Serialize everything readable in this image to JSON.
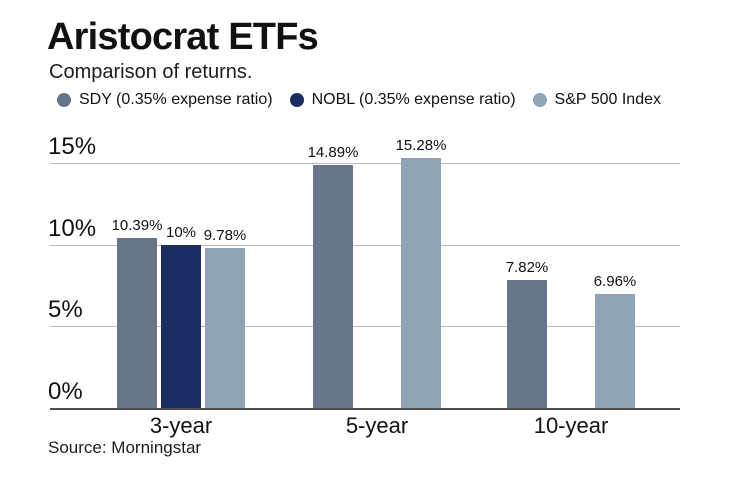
{
  "header": {
    "title": "Aristocrat ETFs",
    "subtitle": "Comparison of returns."
  },
  "source": "Source: Morningstar",
  "chart_data": {
    "type": "bar",
    "title": "Aristocrat ETFs",
    "subtitle": "Comparison of returns.",
    "categories": [
      "3-year",
      "5-year",
      "10-year"
    ],
    "series": [
      {
        "name": "SDY (0.35% expense ratio)",
        "color": "#667589",
        "values": [
          10.39,
          14.89,
          7.82
        ],
        "labels": [
          "10.39%",
          "14.89%",
          "7.82%"
        ]
      },
      {
        "name": "NOBL (0.35% expense ratio)",
        "color": "#1b2e63",
        "values": [
          10,
          null,
          null
        ],
        "labels": [
          "10%",
          null,
          null
        ]
      },
      {
        "name": "S&P 500 Index",
        "color": "#8fa2b6",
        "values": [
          9.78,
          15.28,
          6.96
        ],
        "labels": [
          "9.78%",
          "15.28%",
          "6.96%"
        ]
      }
    ],
    "xlabel": "",
    "ylabel": "",
    "yticks": [
      {
        "value": 0,
        "label": "0%"
      },
      {
        "value": 5,
        "label": "5%"
      },
      {
        "value": 10,
        "label": "10%"
      },
      {
        "value": 15,
        "label": "15%"
      }
    ],
    "ylim": [
      0,
      17
    ],
    "grid": true,
    "legend_position": "top",
    "source": "Source: Morningstar"
  }
}
